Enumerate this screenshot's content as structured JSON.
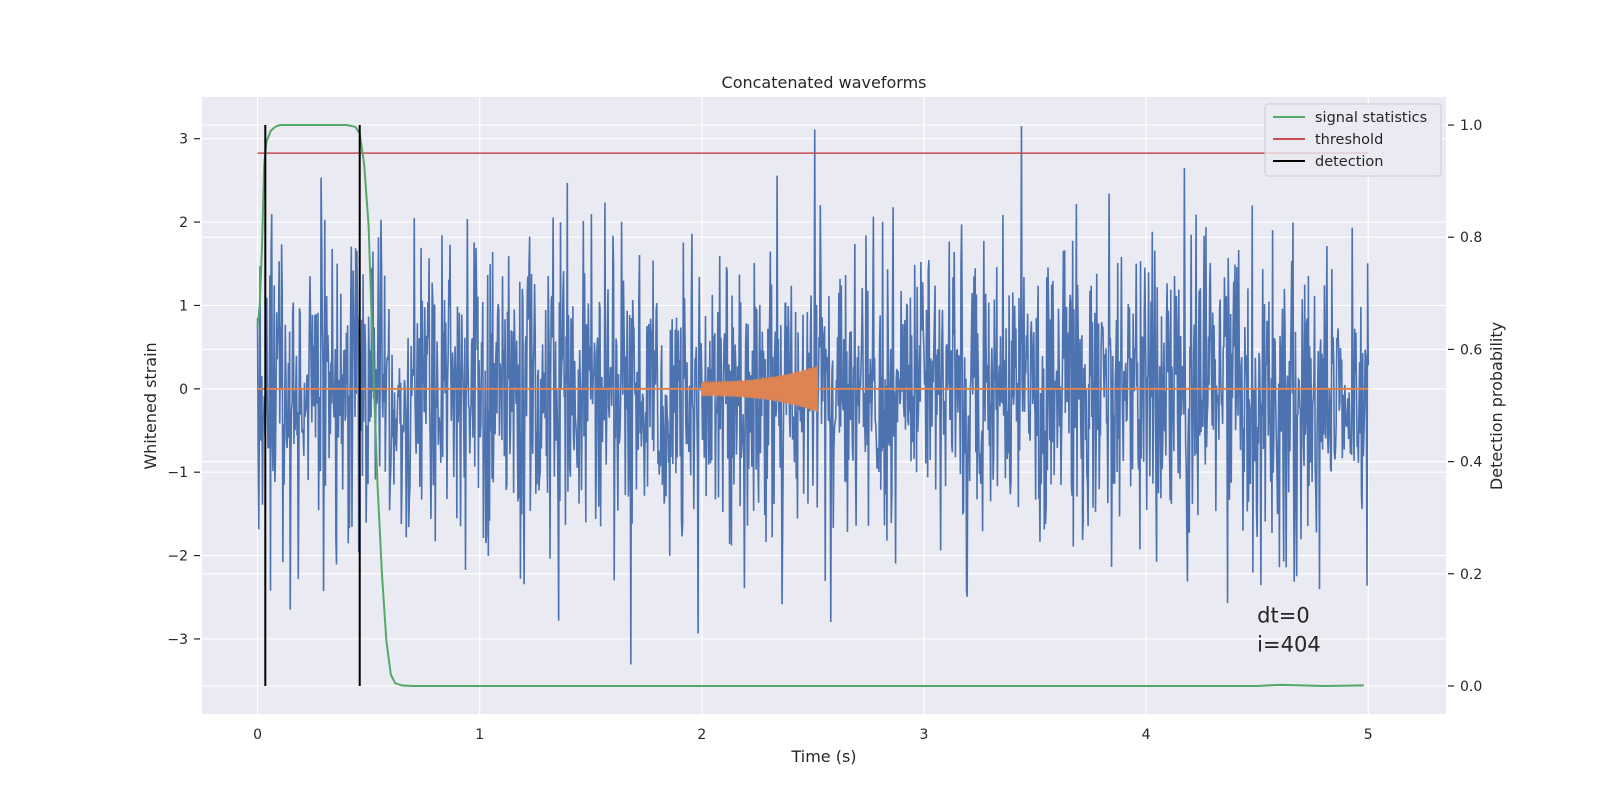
{
  "chart_data": {
    "type": "line",
    "title": "Concatenated waveforms",
    "xlabel": "Time (s)",
    "ylabel": "Whitened strain",
    "ylabel_right": "Detection probability",
    "xlim": [
      -0.25,
      5.35
    ],
    "ylim": [
      -3.9,
      3.5
    ],
    "ylim_right": [
      -0.05,
      1.05
    ],
    "x_ticks": [
      0,
      1,
      2,
      3,
      4,
      5
    ],
    "y_ticks": [
      -3,
      -2,
      -1,
      0,
      1,
      2,
      3
    ],
    "y_ticks_right": [
      0.0,
      0.2,
      0.4,
      0.6,
      0.8,
      1.0
    ],
    "x_tick_labels": [
      "0",
      "1",
      "2",
      "3",
      "4",
      "5"
    ],
    "y_tick_labels": [
      "−3",
      "−2",
      "−1",
      "0",
      "1",
      "2",
      "3"
    ],
    "y_tick_labels_right": [
      "0.0",
      "0.2",
      "0.4",
      "0.6",
      "0.8",
      "1.0"
    ],
    "grid": true,
    "legend_position": "top-right",
    "series": [
      {
        "name": "",
        "color": "#4c72b0",
        "kind": "noise",
        "x_range": [
          0,
          5
        ],
        "approx_std": 0.85,
        "min": -3.55,
        "max": 3.15
      },
      {
        "name": "",
        "color": "#dd8452",
        "kind": "chirp",
        "x_range": [
          2.0,
          2.52
        ],
        "amplitude_start": 0.09,
        "amplitude_end": 0.28
      },
      {
        "name": "signal statistics",
        "color": "#55a868",
        "axis": "right",
        "x": [
          0,
          0.01,
          0.02,
          0.03,
          0.04,
          0.06,
          0.08,
          0.1,
          0.15,
          0.2,
          0.3,
          0.4,
          0.44,
          0.46,
          0.48,
          0.5,
          0.52,
          0.54,
          0.56,
          0.58,
          0.6,
          0.62,
          0.65,
          0.7,
          1.0,
          2.0,
          3.0,
          4.0,
          4.5,
          4.6,
          4.7,
          4.8,
          4.98
        ],
        "y": [
          0.64,
          0.68,
          0.78,
          0.93,
          0.97,
          0.99,
          0.997,
          1.0,
          1.0,
          1.0,
          1.0,
          1.0,
          0.997,
          0.985,
          0.93,
          0.82,
          0.58,
          0.36,
          0.2,
          0.08,
          0.02,
          0.005,
          0.001,
          0.0,
          0.0,
          0.0,
          0.0,
          0.0,
          0.0,
          0.002,
          0.001,
          0.0,
          0.001
        ]
      },
      {
        "name": "threshold",
        "color": "#c44e52",
        "axis": "right",
        "y_value": 0.95,
        "x_range": [
          0,
          5
        ]
      },
      {
        "name": "detection",
        "color": "#000000",
        "axis": "right",
        "x_values": [
          0.035,
          0.46
        ],
        "y_range": [
          0.0,
          1.0
        ]
      }
    ],
    "annotations": [
      {
        "text": "dt=0",
        "x": 4.5,
        "y": -2.8
      },
      {
        "text": "i=404",
        "x": 4.5,
        "y": -3.15
      }
    ]
  }
}
